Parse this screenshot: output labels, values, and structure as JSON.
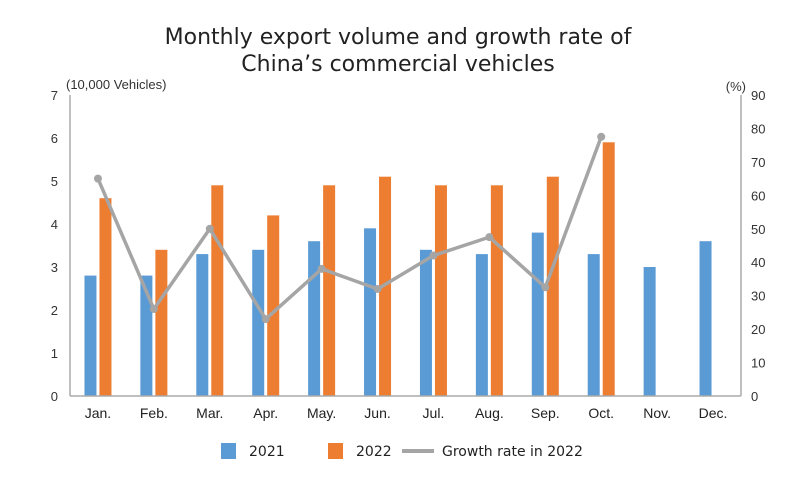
{
  "chart_data": {
    "type": "bar",
    "title_lines": [
      "Monthly export volume and growth rate of",
      "China’s commercial vehicles"
    ],
    "y_left_unit": "(10,000 Vehicles)",
    "y_right_unit": "(%)",
    "y_left_range": [
      0,
      7
    ],
    "y_right_range": [
      0,
      90
    ],
    "y_left_ticks": [
      "0",
      "1",
      "2",
      "3",
      "4",
      "5",
      "6",
      "7"
    ],
    "y_right_ticks": [
      "0",
      "10",
      "20",
      "30",
      "40",
      "50",
      "60",
      "70",
      "80",
      "90"
    ],
    "grid": false,
    "legend_position": "bottom",
    "categories": [
      "Jan.",
      "Feb.",
      "Mar.",
      "Apr.",
      "May.",
      "Jun.",
      "Jul.",
      "Aug.",
      "Sep.",
      "Oct.",
      "Nov.",
      "Dec."
    ],
    "series": [
      {
        "name": "2021",
        "type": "bar",
        "axis": "left",
        "color": "#5B9BD5",
        "values": [
          2.8,
          2.8,
          3.3,
          3.4,
          3.6,
          3.9,
          3.4,
          3.3,
          3.8,
          3.3,
          3.0,
          3.6
        ]
      },
      {
        "name": "2022",
        "type": "bar",
        "axis": "left",
        "color": "#ED7D31",
        "values": [
          4.6,
          3.4,
          4.9,
          4.2,
          4.9,
          5.1,
          4.9,
          4.9,
          5.1,
          5.9,
          null,
          null
        ]
      },
      {
        "name": "Growth rate in 2022",
        "type": "line",
        "axis": "right",
        "color": "#A5A5A5",
        "values": [
          65,
          26,
          50,
          23,
          38,
          32,
          42,
          47.5,
          32.5,
          77.5,
          null,
          null
        ]
      }
    ]
  }
}
